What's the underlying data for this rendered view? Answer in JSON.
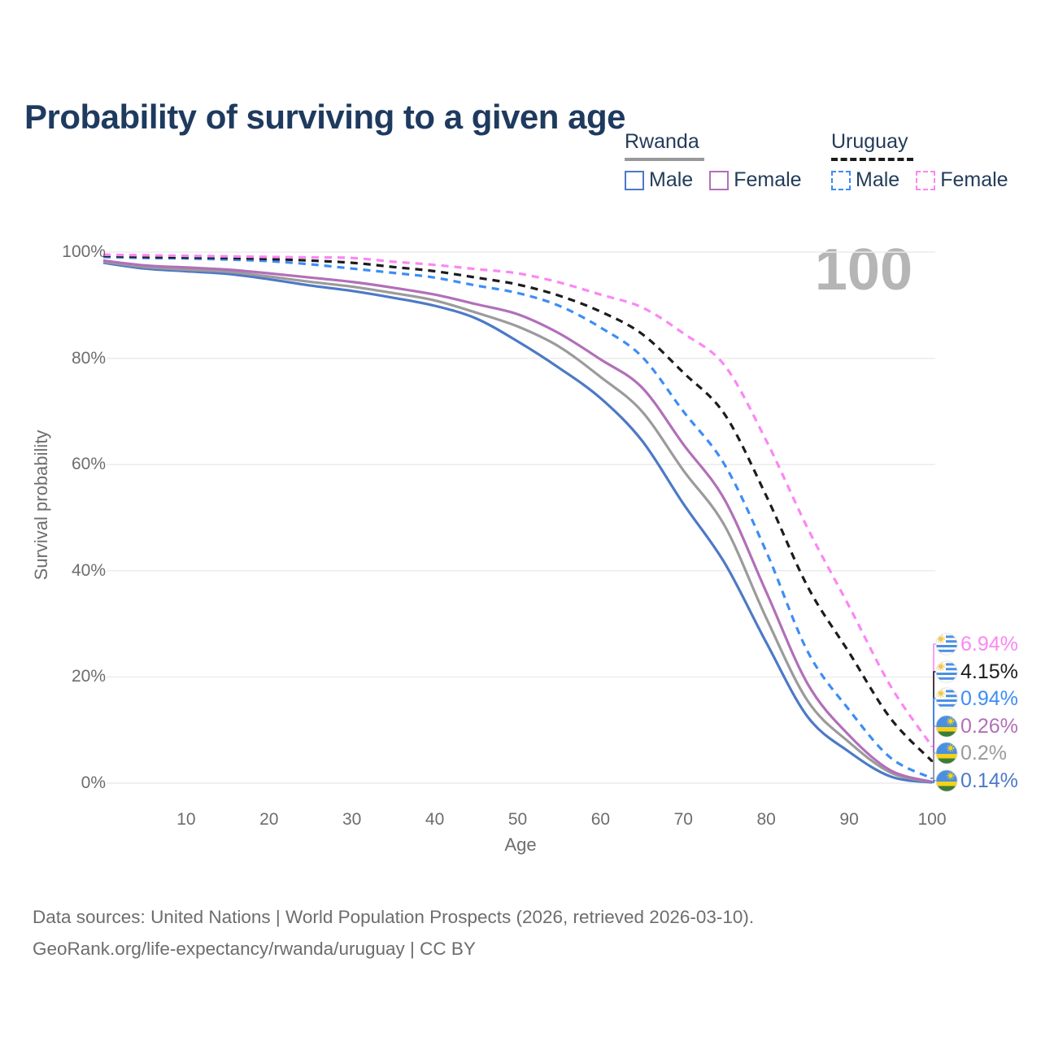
{
  "title": "Probability of surviving to a given age",
  "watermark_age": "100",
  "legend": {
    "groups": [
      {
        "country": "Rwanda",
        "underline_style": "solid",
        "underline_color": "#999999",
        "items": [
          {
            "label": "Male",
            "color": "#4d79c7",
            "dashed": false
          },
          {
            "label": "Female",
            "color": "#b26fb8",
            "dashed": false
          }
        ]
      },
      {
        "country": "Uruguay",
        "underline_style": "dashed",
        "underline_color": "#1c1c1c",
        "items": [
          {
            "label": "Male",
            "color": "#3d8df5",
            "dashed": true
          },
          {
            "label": "Female",
            "color": "#fb87f3",
            "dashed": true
          }
        ]
      }
    ]
  },
  "chart_data": {
    "type": "line",
    "title": "Probability of surviving to a given age",
    "xlabel": "Age",
    "ylabel": "Survival probability",
    "xlim": [
      0,
      100
    ],
    "ylim": [
      0,
      100
    ],
    "grid": "horizontal",
    "legend_position": "top-right",
    "x_ticks": [
      10,
      20,
      30,
      40,
      50,
      60,
      70,
      80,
      90,
      100
    ],
    "y_ticks": [
      {
        "value": 0,
        "label": "0%"
      },
      {
        "value": 20,
        "label": "20%"
      },
      {
        "value": 40,
        "label": "40%"
      },
      {
        "value": 60,
        "label": "60%"
      },
      {
        "value": 80,
        "label": "80%"
      },
      {
        "value": 100,
        "label": "100%"
      }
    ],
    "x": [
      0,
      5,
      10,
      15,
      20,
      25,
      30,
      35,
      40,
      45,
      50,
      55,
      60,
      65,
      70,
      75,
      80,
      85,
      90,
      95,
      100
    ],
    "series": [
      {
        "name": "Rwanda Male",
        "country": "Rwanda",
        "sex": "male",
        "color": "#4d79c7",
        "dashed": false,
        "end_label": "0.14%",
        "flag": "rwanda",
        "values": [
          98.0,
          96.9,
          96.4,
          95.9,
          94.9,
          93.7,
          92.7,
          91.4,
          89.9,
          87.5,
          83.2,
          78.2,
          72.5,
          64.5,
          52.6,
          41.4,
          26.5,
          12.5,
          5.9,
          1.25,
          0.14
        ]
      },
      {
        "name": "Rwanda All",
        "country": "Rwanda",
        "sex": "all",
        "color": "#9b9b9b",
        "dashed": false,
        "end_label": "0.2%",
        "flag": "rwanda",
        "values": [
          98.2,
          97.2,
          96.7,
          96.3,
          95.4,
          94.4,
          93.5,
          92.3,
          90.9,
          88.6,
          86.0,
          82.2,
          76.5,
          70.0,
          58.9,
          48.4,
          31.1,
          15.5,
          7.7,
          2.0,
          0.2
        ]
      },
      {
        "name": "Rwanda Female",
        "country": "Rwanda",
        "sex": "female",
        "color": "#b26fb8",
        "dashed": false,
        "end_label": "0.26%",
        "flag": "rwanda",
        "values": [
          98.4,
          97.5,
          97.1,
          96.7,
          96.0,
          95.2,
          94.4,
          93.3,
          92.0,
          90.2,
          88.3,
          84.7,
          79.8,
          74.5,
          63.8,
          53.3,
          36.0,
          18.7,
          9.0,
          2.4,
          0.26
        ]
      },
      {
        "name": "Uruguay Male",
        "country": "Uruguay",
        "sex": "male",
        "color": "#3d8df5",
        "dashed": true,
        "end_label": "0.94%",
        "flag": "uruguay",
        "values": [
          99.1,
          98.9,
          98.8,
          98.6,
          98.3,
          97.7,
          96.9,
          96.1,
          95.2,
          93.7,
          92.3,
          89.9,
          85.8,
          80.3,
          70.0,
          59.9,
          43.6,
          24.8,
          13.8,
          4.8,
          0.94
        ]
      },
      {
        "name": "Uruguay All",
        "country": "Uruguay",
        "sex": "all",
        "color": "#1c1c1c",
        "dashed": true,
        "end_label": "4.15%",
        "flag": "uruguay",
        "values": [
          99.3,
          99.1,
          99.0,
          98.9,
          98.7,
          98.4,
          98.0,
          97.2,
          96.4,
          95.2,
          93.9,
          91.8,
          88.8,
          84.6,
          77.3,
          69.4,
          54.1,
          37.0,
          24.6,
          12.2,
          4.15
        ]
      },
      {
        "name": "Uruguay Female",
        "country": "Uruguay",
        "sex": "female",
        "color": "#fb87f3",
        "dashed": true,
        "end_label": "6.94%",
        "flag": "uruguay",
        "values": [
          99.5,
          99.4,
          99.3,
          99.2,
          99.1,
          99.0,
          98.9,
          98.2,
          97.6,
          96.8,
          96.0,
          94.3,
          92.0,
          89.6,
          84.7,
          78.6,
          64.5,
          48.0,
          33.3,
          18.3,
          6.94
        ]
      }
    ]
  },
  "colors": {
    "title": "#1e3a5f",
    "axis_text": "#6d6d6d",
    "gridline": "#ececec",
    "watermark": "#b5b5b5"
  },
  "footer": {
    "line1": "Data sources: United Nations | World Population Prospects (2026, retrieved 2026-03-10).",
    "line2": "GeoRank.org/life-expectancy/rwanda/uruguay | CC BY"
  }
}
